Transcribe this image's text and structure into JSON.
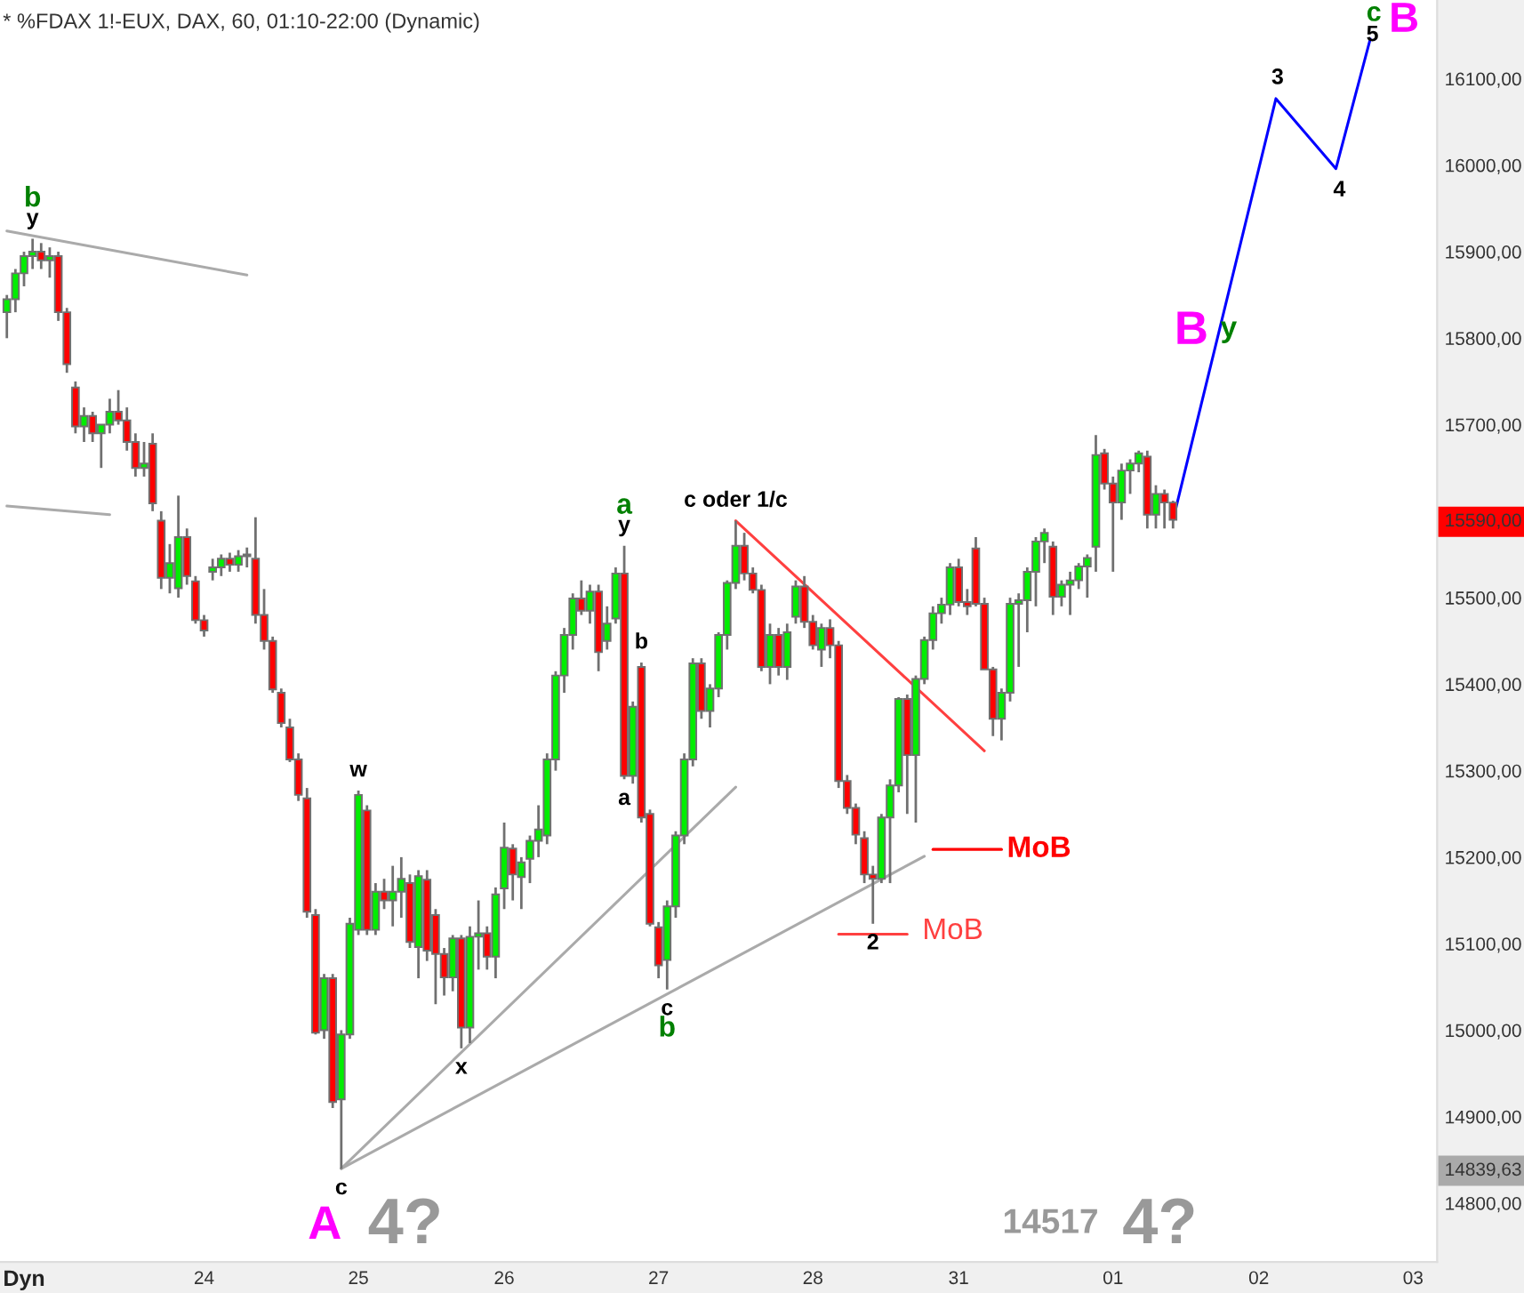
{
  "chart_data": {
    "type": "candlestick",
    "title": "* %FDAX 1!-EUX, DAX, 60, 01:10-22:00 (Dynamic)",
    "categories": [
      null,
      null,
      null,
      null,
      null,
      null,
      null,
      null,
      null,
      null,
      null,
      null,
      null,
      null,
      null,
      null,
      null,
      null,
      null,
      null,
      null,
      null,
      null,
      "24",
      null,
      null,
      null,
      null,
      null,
      null,
      null,
      null,
      null,
      null,
      null,
      null,
      null,
      null,
      null,
      null,
      null,
      "25",
      null,
      null,
      null,
      null,
      null,
      null,
      null,
      null,
      null,
      null,
      null,
      null,
      null,
      null,
      null,
      null,
      "26",
      null,
      null,
      null,
      null,
      null,
      null,
      null,
      null,
      null,
      null,
      null,
      null,
      null,
      null,
      null,
      null,
      null,
      "27",
      null,
      null,
      null,
      null,
      null,
      null,
      null,
      null,
      null,
      null,
      null,
      null,
      null,
      null,
      null,
      null,
      null,
      "28",
      null,
      null,
      null,
      null,
      null,
      null,
      null,
      null,
      null,
      null,
      null,
      null,
      null,
      null,
      null,
      null,
      "31",
      null,
      null,
      null,
      null,
      null,
      null,
      null,
      null,
      null,
      null,
      null,
      null,
      null,
      null,
      null,
      null,
      null,
      "01",
      null,
      null,
      null,
      null,
      null,
      null,
      null,
      null,
      null,
      null,
      null,
      null,
      null,
      null,
      null,
      null,
      "02",
      null,
      null,
      null,
      null,
      null,
      null,
      null,
      null,
      null,
      null,
      null,
      null,
      null,
      null,
      null,
      null,
      null,
      "03",
      null,
      null
    ],
    "ohlc": [
      [
        15830,
        15850,
        15800,
        15845
      ],
      [
        15845,
        15880,
        15830,
        15875
      ],
      [
        15875,
        15900,
        15860,
        15895
      ],
      [
        15895,
        15915,
        15880,
        15900
      ],
      [
        15900,
        15910,
        15880,
        15890
      ],
      [
        15890,
        15905,
        15870,
        15895
      ],
      [
        15895,
        15900,
        15820,
        15830
      ],
      [
        15830,
        15835,
        15760,
        15770
      ],
      [
        15743,
        15750,
        15690,
        15698
      ],
      [
        15698,
        15720,
        15680,
        15710
      ],
      [
        15710,
        15715,
        15680,
        15690
      ],
      [
        15690,
        15700,
        15650,
        15700
      ],
      [
        15700,
        15730,
        15690,
        15715
      ],
      [
        15715,
        15740,
        15700,
        15705
      ],
      [
        15705,
        15720,
        15670,
        15680
      ],
      [
        15680,
        15690,
        15640,
        15650
      ],
      [
        15650,
        15680,
        15640,
        15655
      ],
      [
        15678,
        15690,
        15600,
        15609
      ],
      [
        15589,
        15600,
        15510,
        15523
      ],
      [
        15523,
        15562,
        15505,
        15540
      ],
      [
        15511,
        15618,
        15500,
        15570
      ],
      [
        15570,
        15580,
        15515,
        15525
      ],
      [
        15519,
        15525,
        15470,
        15474
      ],
      [
        15474,
        15480,
        15455,
        15462
      ],
      [
        15530,
        15545,
        15520,
        15535
      ],
      [
        15535,
        15550,
        15525,
        15545
      ],
      [
        15545,
        15552,
        15530,
        15538
      ],
      [
        15538,
        15555,
        15530,
        15548
      ],
      [
        15548,
        15558,
        15535,
        15550
      ],
      [
        15545,
        15593,
        15470,
        15480
      ],
      [
        15480,
        15510,
        15440,
        15450
      ],
      [
        15450,
        15455,
        15390,
        15394
      ],
      [
        15390,
        15395,
        15350,
        15355
      ],
      [
        15350,
        15360,
        15310,
        15313
      ],
      [
        15313,
        15320,
        15265,
        15272
      ],
      [
        15268,
        15280,
        15130,
        15137
      ],
      [
        15133,
        15140,
        14995,
        14997
      ],
      [
        15000,
        15065,
        14990,
        15060
      ],
      [
        15060,
        15065,
        14910,
        14917
      ],
      [
        14920,
        15000,
        14839.63,
        14995
      ],
      [
        14995,
        15130,
        14990,
        15123
      ],
      [
        15116,
        15277,
        15110,
        15272
      ],
      [
        15254,
        15260,
        15110,
        15116
      ],
      [
        15116,
        15170,
        15110,
        15160
      ],
      [
        15160,
        15175,
        15140,
        15150
      ],
      [
        15150,
        15190,
        15120,
        15160
      ],
      [
        15160,
        15200,
        15130,
        15175
      ],
      [
        15170,
        15180,
        15095,
        15102
      ],
      [
        15096,
        15185,
        15060,
        15178
      ],
      [
        15174,
        15185,
        15080,
        15092
      ],
      [
        15133,
        15140,
        15030,
        15088
      ],
      [
        15088,
        15095,
        15040,
        15061
      ],
      [
        15061,
        15110,
        15045,
        15106
      ],
      [
        15106,
        15110,
        14979,
        15003
      ],
      [
        15003,
        15120,
        14985,
        15108
      ],
      [
        15108,
        15150,
        15070,
        15112
      ],
      [
        15112,
        15120,
        15070,
        15085
      ],
      [
        15085,
        15165,
        15060,
        15157
      ],
      [
        15164,
        15240,
        15140,
        15211
      ],
      [
        15210,
        15215,
        15150,
        15180
      ],
      [
        15177,
        15200,
        15140,
        15194
      ],
      [
        15198,
        15225,
        15170,
        15219
      ],
      [
        15219,
        15260,
        15200,
        15232
      ],
      [
        15225,
        15320,
        15215,
        15313
      ],
      [
        15313,
        15415,
        15300,
        15410
      ],
      [
        15410,
        15465,
        15390,
        15457
      ],
      [
        15457,
        15505,
        15440,
        15499
      ],
      [
        15499,
        15520,
        15480,
        15485
      ],
      [
        15485,
        15515,
        15470,
        15507
      ],
      [
        15507,
        15515,
        15415,
        15437
      ],
      [
        15450,
        15490,
        15440,
        15470
      ],
      [
        15476,
        15535,
        15470,
        15528
      ],
      [
        15528,
        15560,
        15290,
        15294
      ],
      [
        15294,
        15380,
        15285,
        15374
      ],
      [
        15420,
        15425,
        15240,
        15246
      ],
      [
        15250,
        15255,
        15120,
        15123
      ],
      [
        15119,
        15125,
        15060,
        15075
      ],
      [
        15081,
        15150,
        15047,
        15143
      ],
      [
        15143,
        15230,
        15130,
        15225
      ],
      [
        15225,
        15320,
        15215,
        15313
      ],
      [
        15313,
        15430,
        15305,
        15424
      ],
      [
        15424,
        15430,
        15360,
        15369
      ],
      [
        15369,
        15400,
        15350,
        15395
      ],
      [
        15395,
        15460,
        15385,
        15457
      ],
      [
        15457,
        15520,
        15440,
        15517
      ],
      [
        15517,
        15589,
        15510,
        15560
      ],
      [
        15560,
        15575,
        15520,
        15528
      ],
      [
        15528,
        15535,
        15505,
        15509
      ],
      [
        15509,
        15515,
        15415,
        15420
      ],
      [
        15420,
        15470,
        15400,
        15457
      ],
      [
        15457,
        15465,
        15410,
        15420
      ],
      [
        15420,
        15470,
        15405,
        15460
      ],
      [
        15478,
        15520,
        15470,
        15513
      ],
      [
        15513,
        15525,
        15465,
        15472
      ],
      [
        15472,
        15480,
        15440,
        15445
      ],
      [
        15440,
        15470,
        15420,
        15465
      ],
      [
        15465,
        15475,
        15430,
        15445
      ],
      [
        15445,
        15450,
        15280,
        15288
      ],
      [
        15288,
        15295,
        15250,
        15257
      ],
      [
        15257,
        15262,
        15215,
        15226
      ],
      [
        15222,
        15230,
        15170,
        15180
      ],
      [
        15180,
        15190,
        15123,
        15175
      ],
      [
        15175,
        15250,
        15170,
        15246
      ],
      [
        15246,
        15290,
        15170,
        15283
      ],
      [
        15283,
        15385,
        15275,
        15383
      ],
      [
        15383,
        15388,
        15250,
        15318
      ],
      [
        15318,
        15410,
        15240,
        15406
      ],
      [
        15406,
        15455,
        15400,
        15451
      ],
      [
        15451,
        15490,
        15440,
        15482
      ],
      [
        15482,
        15500,
        15470,
        15492
      ],
      [
        15492,
        15540,
        15480,
        15535
      ],
      [
        15535,
        15545,
        15490,
        15495
      ],
      [
        15495,
        15510,
        15480,
        15490
      ],
      [
        15557,
        15570,
        15490,
        15493
      ],
      [
        15493,
        15500,
        15417,
        15417
      ],
      [
        15417,
        15420,
        15340,
        15360
      ],
      [
        15360,
        15395,
        15335,
        15390
      ],
      [
        15390,
        15500,
        15380,
        15493
      ],
      [
        15493,
        15505,
        15420,
        15497
      ],
      [
        15497,
        15535,
        15460,
        15530
      ],
      [
        15530,
        15570,
        15490,
        15565
      ],
      [
        15565,
        15580,
        15540,
        15575
      ],
      [
        15559,
        15565,
        15480,
        15501
      ],
      [
        15501,
        15520,
        15490,
        15515
      ],
      [
        15515,
        15530,
        15480,
        15520
      ],
      [
        15520,
        15540,
        15510,
        15536
      ],
      [
        15536,
        15550,
        15500,
        15546
      ],
      [
        15559,
        15688,
        15530,
        15665
      ],
      [
        15667,
        15672,
        15625,
        15632
      ],
      [
        15632,
        15640,
        15530,
        15610
      ],
      [
        15610,
        15655,
        15590,
        15647
      ],
      [
        15647,
        15660,
        15620,
        15655
      ],
      [
        15655,
        15670,
        15645,
        15667
      ],
      [
        15663,
        15670,
        15580,
        15596
      ],
      [
        15596,
        15630,
        15580,
        15620
      ],
      [
        15620,
        15625,
        15580,
        15610
      ],
      [
        15610,
        15612,
        15580,
        15590
      ],
      null,
      null,
      null,
      null,
      null,
      null,
      null,
      null,
      null,
      null,
      null,
      null,
      null,
      null,
      null,
      null,
      null,
      null,
      null,
      null,
      null,
      null,
      null,
      null,
      null,
      null,
      null,
      null,
      null,
      null
    ],
    "series": [
      {
        "type": "line",
        "color": "#aaaaaa",
        "values": [
          15924,
          null,
          null,
          null,
          null,
          null,
          null,
          null,
          null,
          null,
          null,
          null,
          null,
          null,
          null,
          null,
          null,
          null,
          null,
          null,
          null,
          null,
          null,
          null,
          null,
          null,
          null,
          null,
          15873,
          null,
          null,
          null,
          null,
          null,
          null,
          null,
          null,
          null,
          null,
          null,
          null,
          null,
          null,
          null,
          null,
          null,
          null,
          null,
          null,
          null,
          null,
          null,
          null,
          null,
          null,
          null,
          null,
          null,
          null,
          null,
          null,
          null,
          null,
          null,
          null,
          null,
          null,
          null,
          null,
          null,
          null,
          null,
          null,
          null,
          null,
          null,
          null,
          null,
          null,
          null,
          null,
          null,
          null,
          null,
          null,
          null,
          null,
          null,
          null,
          null,
          null,
          null,
          null,
          null,
          null,
          null,
          null,
          null,
          null,
          null,
          null,
          null,
          null,
          null,
          null,
          null,
          null,
          null,
          null,
          null,
          null,
          null,
          null,
          null,
          null,
          null,
          null,
          null,
          null,
          null,
          null,
          null,
          null,
          null,
          null,
          null,
          null,
          null,
          null,
          null,
          null,
          null,
          null,
          null,
          null,
          null,
          null,
          null,
          null,
          null,
          null,
          null,
          null,
          null,
          null,
          null,
          null,
          null,
          null,
          null,
          null,
          null,
          null,
          null,
          null,
          null,
          null,
          null,
          null,
          null,
          null,
          null,
          null,
          null,
          null,
          null,
          null
        ]
      },
      {
        "type": "line",
        "color": "#aaaaaa",
        "values": [
          15606,
          null,
          null,
          null,
          null,
          null,
          null,
          null,
          null,
          null,
          null,
          null,
          15596,
          null,
          null,
          null,
          null,
          null,
          null,
          null,
          null,
          null,
          null,
          null,
          null,
          null,
          null,
          null,
          null,
          null,
          null,
          null,
          null,
          null,
          null,
          null,
          null,
          null,
          null,
          null,
          null,
          null,
          null,
          null,
          null,
          null,
          null,
          null,
          null,
          null,
          null,
          null,
          null,
          null,
          null,
          null,
          null,
          null,
          null,
          null,
          null,
          null,
          null,
          null,
          null,
          null,
          null,
          null,
          null,
          null,
          null,
          null,
          null,
          null,
          null,
          null,
          null,
          null,
          null,
          null,
          null,
          null,
          null,
          null,
          null,
          null,
          null,
          null,
          null,
          null,
          null,
          null,
          null,
          null,
          null,
          null,
          null,
          null,
          null,
          null,
          null,
          null,
          null,
          null,
          null,
          null,
          null,
          null,
          null,
          null,
          null,
          null,
          null,
          null,
          null,
          null,
          null,
          null,
          null,
          null,
          null,
          null,
          null,
          null,
          null,
          null,
          null,
          null,
          null,
          null,
          null,
          null,
          null,
          null,
          null,
          null,
          null,
          null,
          null,
          null,
          null,
          null,
          null,
          null,
          null,
          null,
          null,
          null,
          null,
          null,
          null,
          null,
          null,
          null,
          null,
          null,
          null,
          null,
          null,
          null,
          null,
          null,
          null,
          null,
          null,
          null,
          null
        ]
      },
      {
        "type": "line",
        "color": "#aaaaaa",
        "values": [
          null,
          null,
          null,
          null,
          null,
          null,
          null,
          null,
          null,
          null,
          null,
          null,
          null,
          null,
          null,
          null,
          null,
          null,
          null,
          null,
          null,
          null,
          null,
          null,
          null,
          null,
          null,
          null,
          null,
          null,
          null,
          null,
          null,
          null,
          null,
          null,
          null,
          null,
          null,
          14840,
          null,
          null,
          null,
          null,
          null,
          null,
          null,
          null,
          null,
          null,
          null,
          null,
          null,
          null,
          null,
          null,
          null,
          null,
          null,
          null,
          null,
          null,
          null,
          null,
          null,
          null,
          null,
          null,
          null,
          null,
          null,
          null,
          null,
          null,
          null,
          null,
          null,
          null,
          null,
          null,
          null,
          null,
          null,
          null,
          null,
          15281,
          null,
          null,
          null,
          null,
          null,
          null,
          null,
          null,
          null,
          null,
          null,
          null,
          null,
          null,
          null,
          null,
          null,
          null,
          null,
          null,
          null,
          null,
          null,
          null,
          null,
          null,
          null,
          null,
          null,
          null,
          null,
          null,
          null,
          null,
          null,
          null,
          null,
          null,
          null,
          null,
          null,
          null,
          null,
          null,
          null,
          null,
          null,
          null,
          null,
          null,
          null,
          null,
          null,
          null,
          null,
          null,
          null,
          null,
          null,
          null,
          null,
          null,
          null,
          null,
          null,
          null,
          null,
          null,
          null,
          null,
          null,
          null,
          null,
          null,
          null,
          null,
          null,
          null,
          null,
          null,
          null
        ]
      },
      {
        "type": "line",
        "color": "#aaaaaa",
        "values": [
          null,
          null,
          null,
          null,
          null,
          null,
          null,
          null,
          null,
          null,
          null,
          null,
          null,
          null,
          null,
          null,
          null,
          null,
          null,
          null,
          null,
          null,
          null,
          null,
          null,
          null,
          null,
          null,
          null,
          null,
          null,
          null,
          null,
          null,
          null,
          null,
          null,
          null,
          null,
          14840,
          null,
          null,
          null,
          null,
          null,
          null,
          null,
          null,
          null,
          null,
          null,
          null,
          null,
          null,
          null,
          null,
          null,
          null,
          null,
          null,
          null,
          null,
          null,
          null,
          null,
          null,
          null,
          null,
          null,
          null,
          null,
          null,
          null,
          null,
          null,
          null,
          null,
          null,
          null,
          null,
          null,
          null,
          null,
          null,
          null,
          null,
          null,
          null,
          null,
          null,
          null,
          null,
          null,
          null,
          null,
          null,
          null,
          null,
          null,
          null,
          null,
          null,
          null,
          null,
          null,
          null,
          null,
          15201,
          null,
          null,
          null,
          null,
          null,
          null,
          null,
          null,
          null,
          null,
          null,
          null,
          null,
          null,
          null,
          null,
          null,
          null,
          null,
          null,
          null,
          null,
          null,
          null,
          null,
          null,
          null,
          null,
          null,
          null,
          null,
          null,
          null,
          null,
          null,
          null,
          null,
          null,
          null,
          null,
          null,
          null,
          null,
          null,
          null,
          null,
          null,
          null,
          null,
          null,
          null,
          null,
          null,
          null,
          null,
          null,
          null,
          null,
          null
        ]
      },
      {
        "type": "line",
        "color": "#ff4040",
        "values": [
          null,
          null,
          null,
          null,
          null,
          null,
          null,
          null,
          null,
          null,
          null,
          null,
          null,
          null,
          null,
          null,
          null,
          null,
          null,
          null,
          null,
          null,
          null,
          null,
          null,
          null,
          null,
          null,
          null,
          null,
          null,
          null,
          null,
          null,
          null,
          null,
          null,
          null,
          null,
          null,
          null,
          null,
          null,
          null,
          null,
          null,
          null,
          null,
          null,
          null,
          null,
          null,
          null,
          null,
          null,
          null,
          null,
          null,
          null,
          null,
          null,
          null,
          null,
          null,
          null,
          null,
          null,
          null,
          null,
          null,
          null,
          null,
          null,
          null,
          null,
          null,
          null,
          null,
          null,
          null,
          null,
          null,
          null,
          null,
          null,
          15589,
          null,
          null,
          null,
          null,
          null,
          null,
          null,
          null,
          null,
          null,
          null,
          null,
          null,
          null,
          null,
          null,
          null,
          null,
          null,
          null,
          null,
          null,
          null,
          null,
          null,
          null,
          null,
          null,
          15323,
          null,
          null,
          null,
          null,
          null,
          null,
          null,
          null,
          null,
          null,
          null,
          null,
          null,
          null,
          null,
          null,
          null,
          null,
          null,
          null,
          null,
          null,
          null,
          null,
          null,
          null,
          null,
          null,
          null,
          null,
          null,
          null,
          null,
          null,
          null,
          null,
          null,
          null,
          null,
          null,
          null,
          null,
          null,
          null,
          null,
          null,
          null,
          null,
          null,
          null,
          null,
          null
        ]
      },
      {
        "type": "line",
        "color": "#ff0000",
        "values": [
          null,
          null,
          null,
          null,
          null,
          null,
          null,
          null,
          null,
          null,
          null,
          null,
          null,
          null,
          null,
          null,
          null,
          null,
          null,
          null,
          null,
          null,
          null,
          null,
          null,
          null,
          null,
          null,
          null,
          null,
          null,
          null,
          null,
          null,
          null,
          null,
          null,
          null,
          null,
          null,
          null,
          null,
          null,
          null,
          null,
          null,
          null,
          null,
          null,
          null,
          null,
          null,
          null,
          null,
          null,
          null,
          null,
          null,
          null,
          null,
          null,
          null,
          null,
          null,
          null,
          null,
          null,
          null,
          null,
          null,
          null,
          null,
          null,
          null,
          null,
          null,
          null,
          null,
          null,
          null,
          null,
          null,
          null,
          null,
          null,
          null,
          null,
          null,
          null,
          null,
          null,
          null,
          null,
          null,
          null,
          null,
          null,
          null,
          null,
          null,
          null,
          null,
          null,
          null,
          null,
          null,
          null,
          null,
          15209,
          null,
          null,
          null,
          null,
          null,
          null,
          null,
          15209,
          null,
          null,
          null,
          null,
          null,
          null,
          null,
          null,
          null,
          null,
          null,
          null,
          null,
          null,
          null,
          null,
          null,
          null,
          null,
          null,
          null,
          null,
          null,
          null,
          null,
          null,
          null,
          null,
          null,
          null,
          null,
          null,
          null,
          null,
          null,
          null,
          null,
          null,
          null,
          null,
          null,
          null,
          null,
          null,
          null,
          null,
          null,
          null,
          null,
          null
        ]
      },
      {
        "type": "line",
        "color": "#ff4040",
        "values": [
          null,
          null,
          null,
          null,
          null,
          null,
          null,
          null,
          null,
          null,
          null,
          null,
          null,
          null,
          null,
          null,
          null,
          null,
          null,
          null,
          null,
          null,
          null,
          null,
          null,
          null,
          null,
          null,
          null,
          null,
          null,
          null,
          null,
          null,
          null,
          null,
          null,
          null,
          null,
          null,
          null,
          null,
          null,
          null,
          null,
          null,
          null,
          null,
          null,
          null,
          null,
          null,
          null,
          null,
          null,
          null,
          null,
          null,
          null,
          null,
          null,
          null,
          null,
          null,
          null,
          null,
          null,
          null,
          null,
          null,
          null,
          null,
          null,
          null,
          null,
          null,
          null,
          null,
          null,
          null,
          null,
          null,
          null,
          null,
          null,
          null,
          null,
          null,
          null,
          null,
          null,
          null,
          null,
          null,
          null,
          null,
          null,
          15111,
          null,
          null,
          null,
          null,
          null,
          null,
          null,
          15111,
          null,
          null,
          null,
          null,
          null,
          null,
          null,
          null,
          null,
          null,
          null,
          null,
          null,
          null,
          null,
          null,
          null,
          null,
          null,
          null,
          null,
          null,
          null,
          null,
          null,
          null,
          null,
          null,
          null,
          null,
          null,
          null,
          null,
          null,
          null,
          null,
          null,
          null,
          null,
          null,
          null,
          null,
          null,
          null,
          null,
          null,
          null,
          null,
          null,
          null,
          null,
          null,
          null,
          null,
          null,
          null,
          null,
          null,
          null,
          null,
          null
        ]
      },
      {
        "type": "line",
        "color": "#0000ff",
        "values": [
          null,
          null,
          null,
          null,
          null,
          null,
          null,
          null,
          null,
          null,
          null,
          null,
          null,
          null,
          null,
          null,
          null,
          null,
          null,
          null,
          null,
          null,
          null,
          null,
          null,
          null,
          null,
          null,
          null,
          null,
          null,
          null,
          null,
          null,
          null,
          null,
          null,
          null,
          null,
          null,
          null,
          null,
          null,
          null,
          null,
          null,
          null,
          null,
          null,
          null,
          null,
          null,
          null,
          null,
          null,
          null,
          null,
          null,
          null,
          null,
          null,
          null,
          null,
          null,
          null,
          null,
          null,
          null,
          null,
          null,
          null,
          null,
          null,
          null,
          null,
          null,
          null,
          null,
          null,
          null,
          null,
          null,
          null,
          null,
          null,
          null,
          null,
          null,
          null,
          null,
          null,
          null,
          null,
          null,
          null,
          null,
          null,
          null,
          null,
          null,
          null,
          null,
          null,
          null,
          null,
          null,
          null,
          null,
          null,
          null,
          null,
          null,
          null,
          null,
          null,
          null,
          null,
          null,
          null,
          null,
          null,
          null,
          null,
          null,
          null,
          null,
          null,
          null,
          null,
          null,
          null,
          null,
          null,
          null,
          null,
          null,
          15590,
          null,
          null,
          null,
          null,
          null,
          null,
          null,
          null,
          null,
          null,
          null,
          16077,
          null,
          null,
          null,
          null,
          null,
          null,
          15996,
          null,
          null,
          null,
          16146,
          null,
          null,
          null,
          null,
          null,
          null,
          null
        ]
      }
    ],
    "ylim": [
      14732,
      16191
    ],
    "yticks": [
      {
        "value": 14800,
        "label": "14800,00"
      },
      {
        "value": 14900,
        "label": "14900,00"
      },
      {
        "value": 15000,
        "label": "15000,00"
      },
      {
        "value": 15100,
        "label": "15100,00"
      },
      {
        "value": 15200,
        "label": "15200,00"
      },
      {
        "value": 15300,
        "label": "15300,00"
      },
      {
        "value": 15400,
        "label": "15400,00"
      },
      {
        "value": 15500,
        "label": "15500,00"
      },
      {
        "value": 15700,
        "label": "15700,00"
      },
      {
        "value": 15800,
        "label": "15800,00"
      },
      {
        "value": 15900,
        "label": "15900,00"
      },
      {
        "value": 16000,
        "label": "16000,00"
      },
      {
        "value": 16100,
        "label": "16100,00"
      },
      {
        "value": 15590,
        "label": "15590,00"
      },
      {
        "value": 14839.63,
        "label": "14839,63"
      }
    ],
    "annotations": [
      {
        "text": "y",
        "y": 15915
      },
      {
        "text": "b",
        "y": 15915
      },
      {
        "text": "w",
        "y": 15277
      },
      {
        "text": "c",
        "y": 14839.63
      },
      {
        "text": "x",
        "y": 14979
      },
      {
        "text": "y",
        "y": 15560
      },
      {
        "text": "a",
        "y": 15560
      },
      {
        "text": "b",
        "y": 15425
      },
      {
        "text": "a",
        "y": 15290
      },
      {
        "text": "c",
        "y": 15047
      },
      {
        "text": "b",
        "y": 15047
      },
      {
        "text": "c oder 1/c",
        "y": 15589
      },
      {
        "text": "2",
        "y": 15123
      },
      "MoB",
      "MoB",
      "3",
      "4",
      "5",
      "c",
      "B",
      "A",
      "4?",
      "14517",
      "4?",
      "B",
      "y",
      "Dyn"
    ],
    "grid": false,
    "legend": false
  }
}
